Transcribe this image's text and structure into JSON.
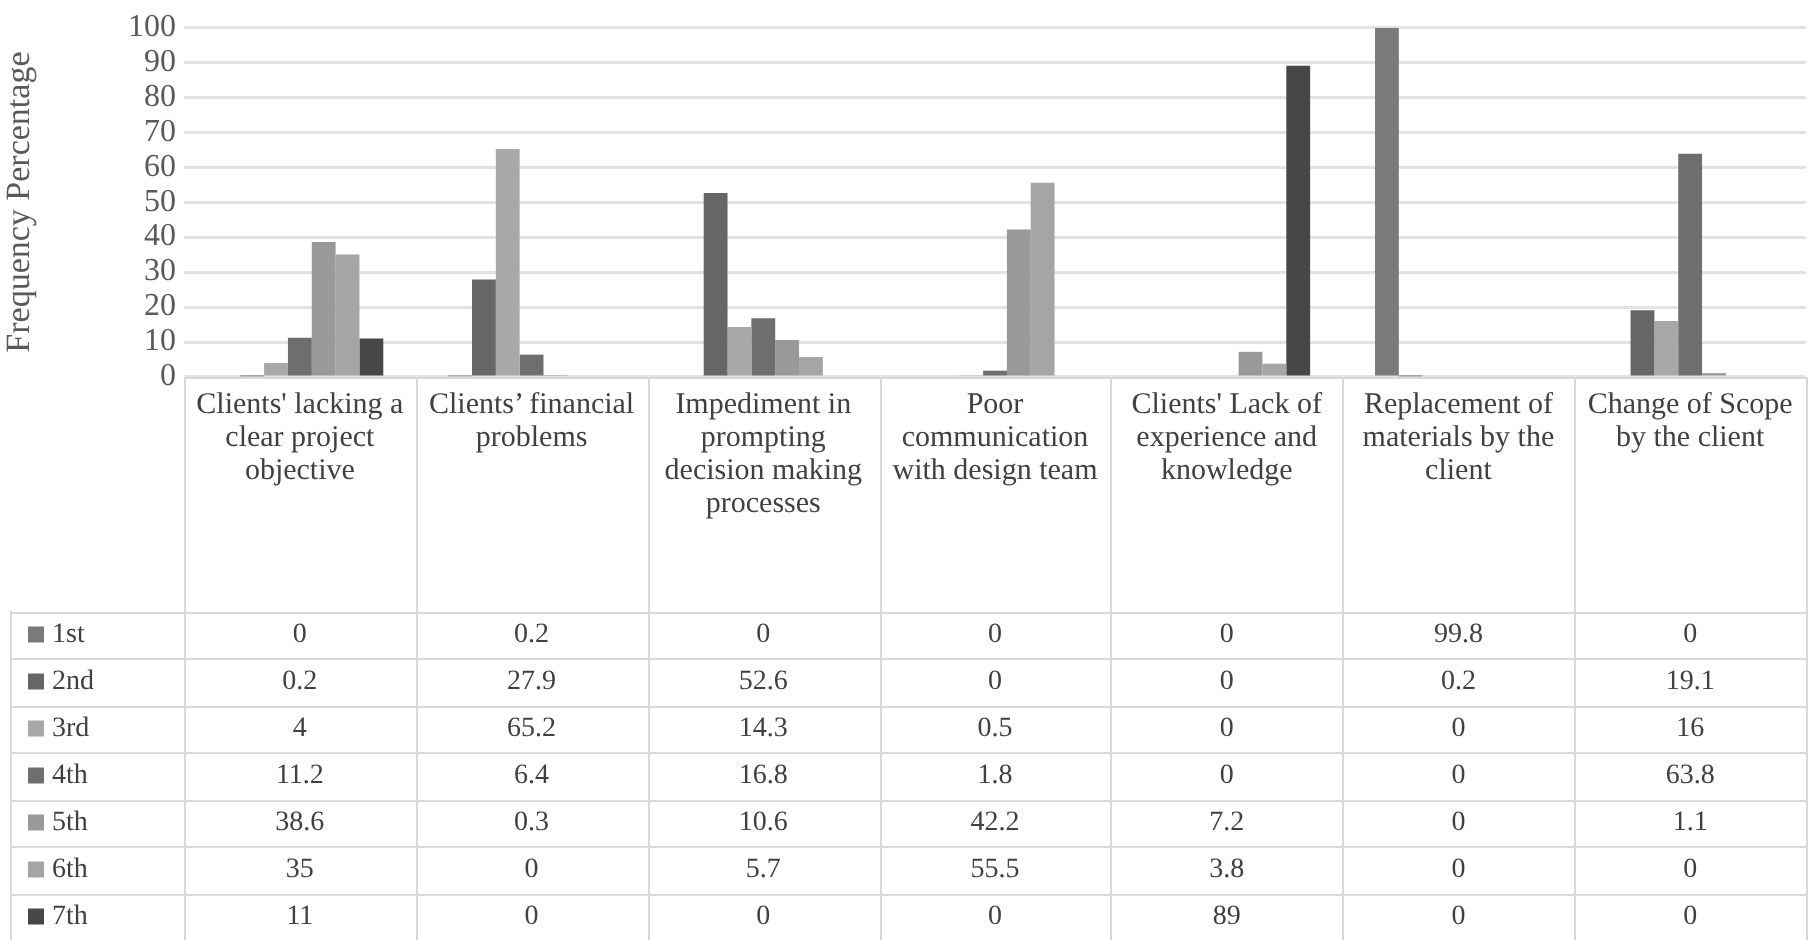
{
  "chart_data": {
    "type": "bar",
    "ylabel": "Frequency Percentage",
    "categories": [
      "Clients' lacking a clear project objective",
      "Clients’ financial problems",
      "Impediment in prompting decision making processes",
      "Poor communication with design team",
      "Clients' Lack of experience and knowledge",
      "Replacement of materials by the client",
      "Change of Scope by the client"
    ],
    "series": [
      {
        "name": "1st",
        "color": "#7a7a7a",
        "values": [
          0,
          0.2,
          0,
          0,
          0,
          99.8,
          0
        ]
      },
      {
        "name": "2nd",
        "color": "#666666",
        "values": [
          0.2,
          27.9,
          52.6,
          0,
          0,
          0.2,
          19.1
        ]
      },
      {
        "name": "3rd",
        "color": "#a8a8a8",
        "values": [
          4,
          65.2,
          14.3,
          0.5,
          0,
          0,
          16
        ]
      },
      {
        "name": "4th",
        "color": "#6e6e6e",
        "values": [
          11.2,
          6.4,
          16.8,
          1.8,
          0,
          0,
          63.8
        ]
      },
      {
        "name": "5th",
        "color": "#999999",
        "values": [
          38.6,
          0.3,
          10.6,
          42.2,
          7.2,
          0,
          1.1
        ]
      },
      {
        "name": "6th",
        "color": "#a5a5a5",
        "values": [
          35,
          0,
          5.7,
          55.5,
          3.8,
          0,
          0
        ]
      },
      {
        "name": "7th",
        "color": "#474747",
        "values": [
          11,
          0,
          0,
          0,
          89,
          0,
          0
        ]
      }
    ],
    "ylim": [
      0,
      100
    ],
    "yticks": [
      0,
      10,
      20,
      30,
      40,
      50,
      60,
      70,
      80,
      90,
      100
    ],
    "grid": "y",
    "legend": "bottom",
    "data_labels": true
  }
}
